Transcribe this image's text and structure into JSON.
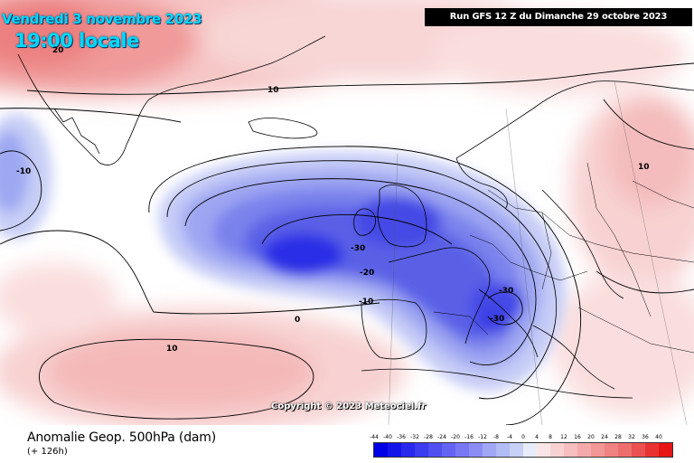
{
  "header": {
    "date_text": "Vendredi 3 novembre 2023",
    "time_text": "19:00 locale",
    "run_text": "Run GFS 12 Z du Dimanche 29 octobre 2023"
  },
  "map": {
    "description_colors": {
      "negative_deep": "#2020e0",
      "negative_mid": "#6e6ef0",
      "negative_light": "#c8cdf6",
      "positive_light": "#f6d2d2",
      "positive_mid": "#f0a0a0",
      "neutral": "#ffffff",
      "coast": "#000000"
    },
    "contour_labels": [
      {
        "text": "20"
      },
      {
        "text": "10"
      },
      {
        "text": "-10"
      },
      {
        "text": "-30"
      },
      {
        "text": "-20"
      },
      {
        "text": "-10"
      },
      {
        "text": "0"
      },
      {
        "text": "10"
      },
      {
        "text": "-30"
      },
      {
        "text": "-30"
      },
      {
        "text": "10"
      }
    ],
    "copyright": "Copyright © 2023 Meteociel.fr"
  },
  "footer": {
    "parameter_title": "Anomalie Geop. 500hPa (dam)",
    "lead_time": "(+ 126h)"
  },
  "scale": {
    "ticks": [
      "-44",
      "-40",
      "-36",
      "-32",
      "-28",
      "-24",
      "-20",
      "-16",
      "-12",
      "-8",
      "-4",
      "0",
      "4",
      "8",
      "12",
      "16",
      "20",
      "24",
      "28",
      "32",
      "36",
      "40"
    ],
    "colors": [
      "#0000e6",
      "#1414ea",
      "#2828ee",
      "#3c3cf0",
      "#5050f2",
      "#6464f4",
      "#7878f6",
      "#8c8cf6",
      "#a0a8f6",
      "#b4bcf6",
      "#c8d0f6",
      "#e8ecfa",
      "#fae6e6",
      "#f8d2d2",
      "#f6bebe",
      "#f4aaaa",
      "#f29696",
      "#f08282",
      "#ee6e6e",
      "#ec5050",
      "#e83232",
      "#e61414"
    ]
  }
}
